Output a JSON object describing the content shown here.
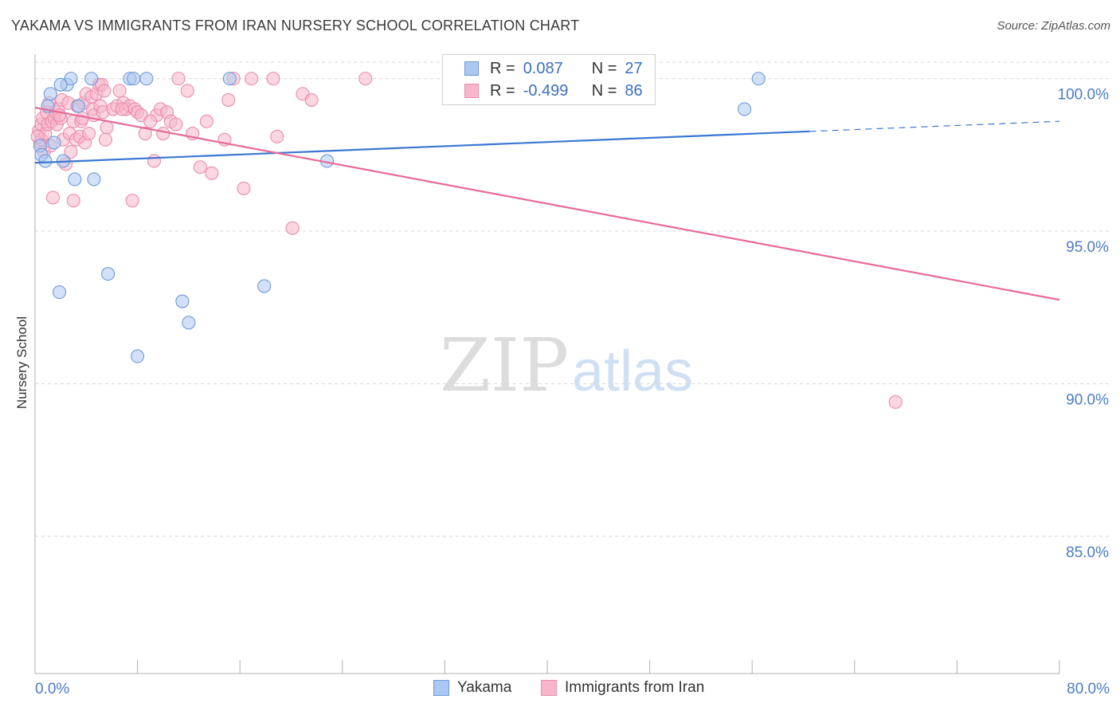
{
  "title": "YAKAMA VS IMMIGRANTS FROM IRAN NURSERY SCHOOL CORRELATION CHART",
  "source": "Source: ZipAtlas.com",
  "watermark": {
    "zip": "ZIP",
    "atlas": "atlas"
  },
  "colors": {
    "yakama_fill": "#adc8f0",
    "yakama_stroke": "#6f9ad8",
    "yakama_line": "#3b77d1",
    "iran_fill": "#f7b6cb",
    "iran_stroke": "#ea8cad",
    "iran_line": "#e56b99",
    "axis_text": "#4a7cc7",
    "grid": "#d8d8d8"
  },
  "stats_legend": [
    {
      "series": "Yakama",
      "r_label": "R =",
      "r_value": "0.087",
      "n_label": "N =",
      "n_value": "27"
    },
    {
      "series": "Immigrants from Iran",
      "r_label": "R =",
      "r_value": "-0.499",
      "n_label": "N =",
      "n_value": "86"
    }
  ],
  "chart_data": {
    "type": "scatter",
    "title": "YAKAMA VS IMMIGRANTS FROM IRAN NURSERY SCHOOL CORRELATION CHART",
    "xlabel": "",
    "ylabel": "Nursery School",
    "xlim": [
      0,
      80
    ],
    "ylim": [
      80.5,
      100.8
    ],
    "x_tick_labels": [
      {
        "value": 0,
        "label": "0.0%"
      },
      {
        "value": 80,
        "label": "80.0%"
      }
    ],
    "x_minor_ticks": [
      8,
      16,
      24,
      32,
      40,
      48,
      56,
      64,
      72,
      80
    ],
    "y_ticks": [
      {
        "value": 100,
        "label": "100.0%"
      },
      {
        "value": 95,
        "label": "95.0%"
      },
      {
        "value": 90,
        "label": "90.0%"
      },
      {
        "value": 85,
        "label": "85.0%"
      }
    ],
    "grid": true,
    "legend_position": "bottom",
    "series": [
      {
        "name": "Yakama",
        "points": [
          [
            0.4,
            97.8
          ],
          [
            0.5,
            97.5
          ],
          [
            0.8,
            97.3
          ],
          [
            1.0,
            99.1
          ],
          [
            1.2,
            99.5
          ],
          [
            1.5,
            97.9
          ],
          [
            1.9,
            93.0
          ],
          [
            2.2,
            97.3
          ],
          [
            2.5,
            99.8
          ],
          [
            2.8,
            100.0
          ],
          [
            3.1,
            96.7
          ],
          [
            3.4,
            99.1
          ],
          [
            4.4,
            100.0
          ],
          [
            4.6,
            96.7
          ],
          [
            5.7,
            93.6
          ],
          [
            7.4,
            100.0
          ],
          [
            7.7,
            100.0
          ],
          [
            8.0,
            90.9
          ],
          [
            8.7,
            100.0
          ],
          [
            11.5,
            92.7
          ],
          [
            12.0,
            92.0
          ],
          [
            15.2,
            100.0
          ],
          [
            17.9,
            93.2
          ],
          [
            22.8,
            97.3
          ],
          [
            55.4,
            99.0
          ],
          [
            56.5,
            100.0
          ],
          [
            2.0,
            99.8
          ]
        ],
        "trend": {
          "x0": 0,
          "y0": 97.24,
          "x1": 60.5,
          "y1": 98.27,
          "dashed_to_x": 80,
          "dashed_to_y": 98.6
        }
      },
      {
        "name": "Immigrants from Iran",
        "points": [
          [
            0.3,
            98.3
          ],
          [
            0.4,
            97.9
          ],
          [
            0.5,
            98.0
          ],
          [
            0.5,
            98.5
          ],
          [
            0.6,
            98.7
          ],
          [
            0.7,
            97.6
          ],
          [
            0.8,
            98.2
          ],
          [
            0.9,
            98.9
          ],
          [
            1.0,
            98.5
          ],
          [
            1.1,
            99.2
          ],
          [
            1.2,
            97.8
          ],
          [
            1.3,
            98.6
          ],
          [
            1.4,
            96.1
          ],
          [
            1.5,
            98.7
          ],
          [
            1.6,
            98.9
          ],
          [
            1.7,
            98.5
          ],
          [
            1.8,
            99.0
          ],
          [
            2.0,
            98.7
          ],
          [
            2.1,
            99.3
          ],
          [
            2.2,
            98.0
          ],
          [
            2.4,
            97.2
          ],
          [
            2.6,
            99.2
          ],
          [
            2.7,
            98.2
          ],
          [
            2.8,
            97.6
          ],
          [
            3.0,
            96.0
          ],
          [
            3.0,
            98.6
          ],
          [
            3.2,
            98.0
          ],
          [
            3.3,
            99.1
          ],
          [
            3.5,
            98.1
          ],
          [
            3.6,
            98.6
          ],
          [
            3.8,
            99.2
          ],
          [
            3.9,
            97.9
          ],
          [
            4.0,
            99.5
          ],
          [
            4.2,
            98.2
          ],
          [
            4.4,
            99.4
          ],
          [
            4.5,
            99.0
          ],
          [
            4.6,
            98.8
          ],
          [
            4.8,
            99.5
          ],
          [
            5.0,
            99.8
          ],
          [
            5.1,
            99.1
          ],
          [
            5.2,
            99.8
          ],
          [
            5.3,
            98.9
          ],
          [
            5.5,
            98.0
          ],
          [
            5.6,
            98.4
          ],
          [
            6.1,
            99.0
          ],
          [
            6.4,
            99.1
          ],
          [
            6.6,
            99.6
          ],
          [
            6.9,
            99.2
          ],
          [
            7.1,
            99.0
          ],
          [
            7.4,
            99.1
          ],
          [
            7.6,
            96.0
          ],
          [
            7.8,
            99.0
          ],
          [
            8.0,
            98.9
          ],
          [
            8.3,
            98.8
          ],
          [
            8.6,
            98.2
          ],
          [
            9.3,
            97.3
          ],
          [
            9.5,
            98.8
          ],
          [
            9.8,
            99.0
          ],
          [
            10.0,
            98.2
          ],
          [
            10.3,
            98.9
          ],
          [
            10.6,
            98.6
          ],
          [
            11.0,
            98.5
          ],
          [
            11.2,
            100.0
          ],
          [
            11.9,
            99.6
          ],
          [
            12.3,
            98.2
          ],
          [
            12.9,
            97.1
          ],
          [
            13.4,
            98.6
          ],
          [
            13.8,
            96.9
          ],
          [
            14.8,
            98.0
          ],
          [
            15.1,
            99.3
          ],
          [
            15.5,
            100.0
          ],
          [
            16.3,
            96.4
          ],
          [
            16.9,
            100.0
          ],
          [
            18.6,
            100.0
          ],
          [
            18.9,
            98.1
          ],
          [
            20.1,
            95.1
          ],
          [
            20.9,
            99.5
          ],
          [
            21.6,
            99.3
          ],
          [
            25.8,
            100.0
          ],
          [
            67.2,
            89.4
          ],
          [
            0.2,
            98.1
          ],
          [
            1.9,
            98.8
          ],
          [
            3.7,
            98.7
          ],
          [
            5.4,
            99.6
          ],
          [
            6.8,
            99.0
          ],
          [
            9.0,
            98.6
          ]
        ],
        "trend": {
          "x0": 0,
          "y0": 99.05,
          "x1": 80,
          "y1": 92.75
        }
      }
    ]
  }
}
